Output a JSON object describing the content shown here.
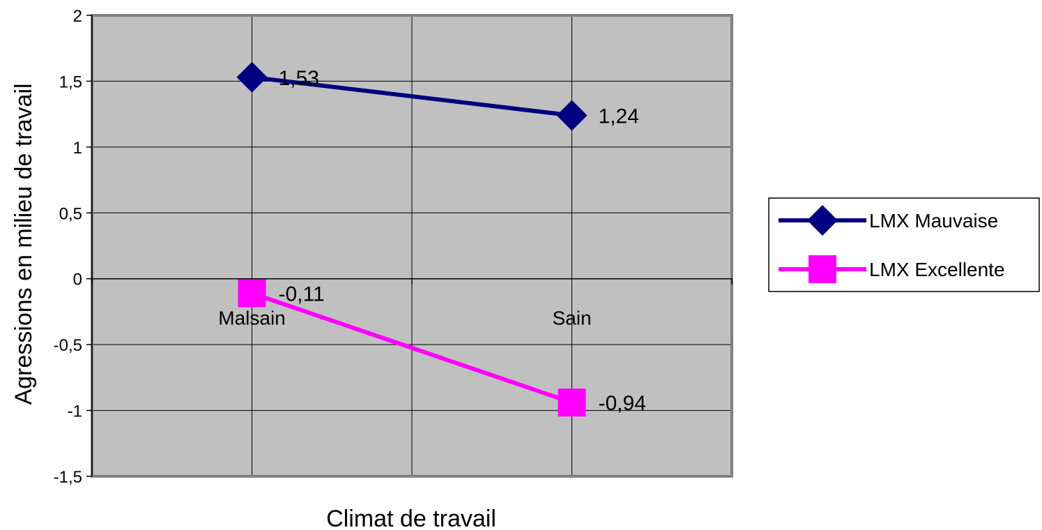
{
  "chart_data": {
    "type": "line",
    "xlabel": "Climat de travail",
    "ylabel": "Agressions en milieu de travail",
    "categories": [
      "Malsain",
      "Sain"
    ],
    "ylim": [
      -1.5,
      2
    ],
    "yticks": [
      2,
      1.5,
      1,
      0.5,
      0,
      -0.5,
      -1,
      -1.5
    ],
    "ytick_labels": [
      "2",
      "1,5",
      "1",
      "0,5",
      "0",
      "-0,5",
      "-1",
      "-1,5"
    ],
    "grid": true,
    "legend_position": "right",
    "plot_background": "#c0c0c0",
    "series": [
      {
        "name": "LMX Mauvaise",
        "values": [
          1.53,
          1.24
        ],
        "labels": [
          "1,53",
          "1,24"
        ],
        "color": "#000080",
        "marker": "diamond"
      },
      {
        "name": "LMX Excellente",
        "values": [
          -0.11,
          -0.94
        ],
        "labels": [
          "-0,11",
          "-0,94"
        ],
        "color": "#ff00ff",
        "marker": "square"
      }
    ]
  }
}
